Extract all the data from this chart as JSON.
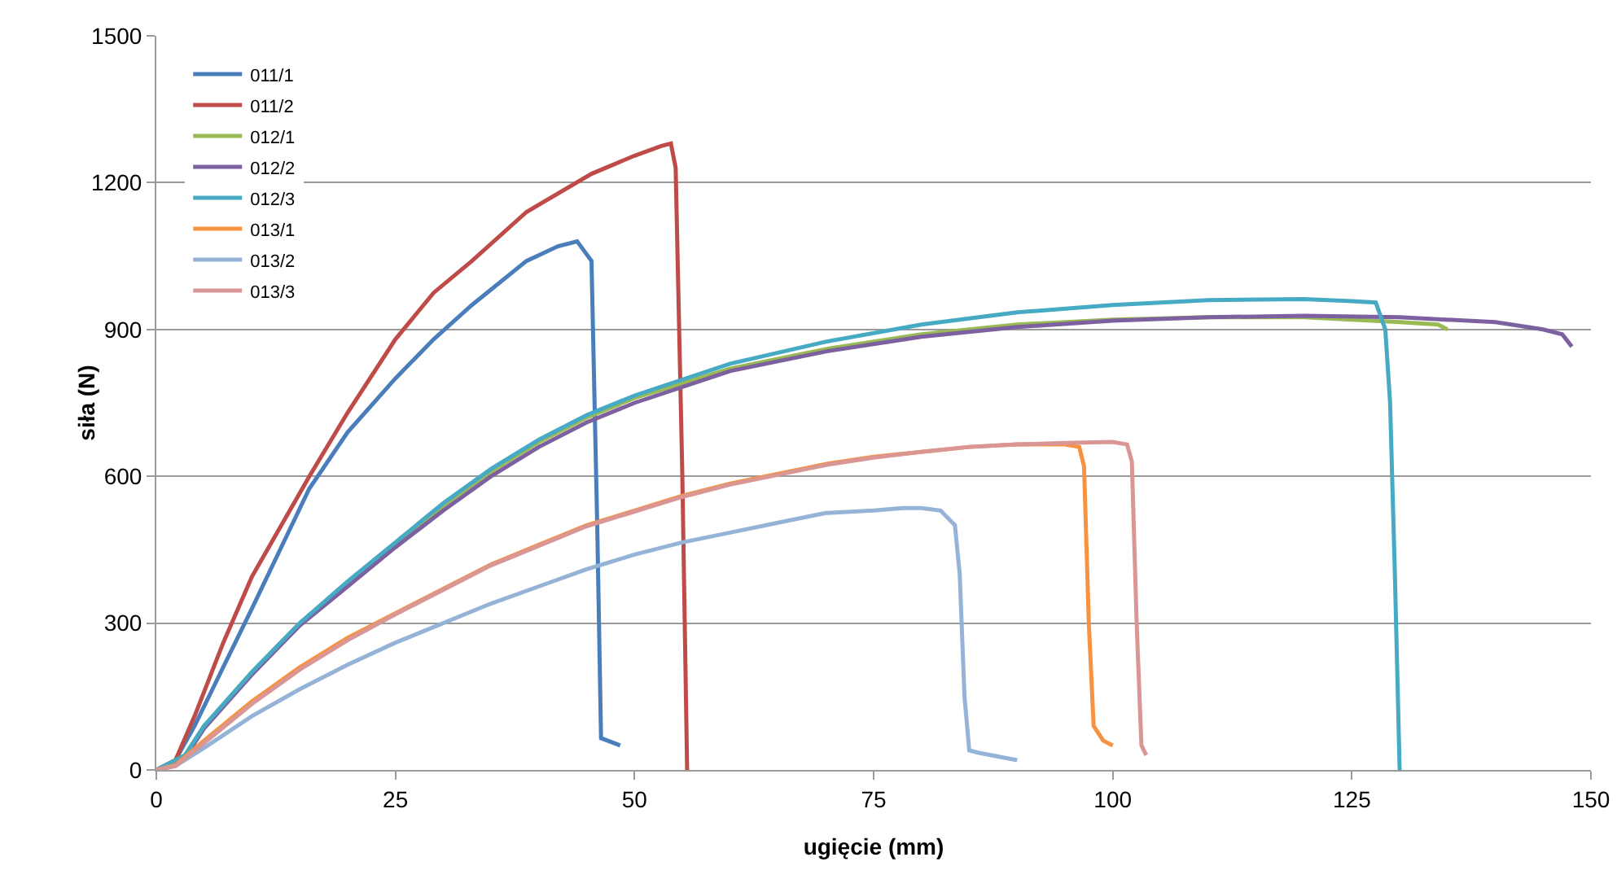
{
  "chart_data": {
    "type": "line",
    "xlabel": "ugięcie (mm)",
    "ylabel": "siła (N)",
    "xlim": [
      0,
      150
    ],
    "xticks": [
      0,
      25,
      50,
      75,
      100,
      125,
      150
    ],
    "ylim": [
      0,
      1500
    ],
    "yticks": [
      0,
      300,
      600,
      900,
      1200,
      1500
    ],
    "grid": "y",
    "legend": "top left",
    "marker": "none",
    "line_style": "solid",
    "series": [
      {
        "name": "011/1",
        "color": "#4a7ebb",
        "x": [
          0,
          2,
          4,
          7,
          10,
          16,
          20,
          25,
          29,
          33,
          38.7,
          42,
          44,
          45.5,
          46.1,
          46.5,
          48.5
        ],
        "values": [
          0,
          20,
          90,
          210,
          330,
          575,
          690,
          800,
          880,
          950,
          1040,
          1070,
          1080,
          1040,
          500,
          65,
          50
        ]
      },
      {
        "name": "011/2",
        "color": "#be4b48",
        "x": [
          0,
          2,
          4,
          7,
          10,
          16,
          20,
          25,
          29,
          33,
          38.7,
          45.5,
          50,
          52.8,
          53.8,
          54.3,
          55,
          55.5
        ],
        "values": [
          0,
          20,
          110,
          260,
          395,
          600,
          730,
          880,
          975,
          1040,
          1140,
          1218,
          1255,
          1275,
          1280,
          1230,
          600,
          0
        ]
      },
      {
        "name": "012/1",
        "color": "#98b954",
        "x": [
          0,
          3,
          5,
          10,
          15,
          20,
          25,
          30,
          35,
          40,
          45,
          50,
          60,
          70,
          80,
          90,
          100,
          110,
          120,
          130,
          134,
          135
        ],
        "values": [
          0,
          30,
          90,
          200,
          300,
          380,
          460,
          540,
          610,
          670,
          720,
          760,
          820,
          860,
          890,
          910,
          920,
          925,
          925,
          915,
          910,
          900
        ]
      },
      {
        "name": "012/2",
        "color": "#7d60a0",
        "x": [
          0,
          3,
          5,
          10,
          15,
          20,
          25,
          30,
          35,
          40,
          45,
          50,
          60,
          70,
          80,
          90,
          100,
          110,
          120,
          130,
          140,
          145,
          147,
          148
        ],
        "values": [
          0,
          25,
          85,
          195,
          295,
          375,
          455,
          530,
          600,
          660,
          710,
          750,
          815,
          855,
          885,
          905,
          918,
          925,
          928,
          925,
          915,
          900,
          890,
          865
        ]
      },
      {
        "name": "012/3",
        "color": "#46aac5",
        "x": [
          0,
          3,
          5,
          10,
          15,
          20,
          25,
          30,
          35,
          40,
          45,
          50,
          60,
          70,
          80,
          90,
          100,
          110,
          120,
          125,
          127.5,
          128.5,
          129,
          129.5,
          130
        ],
        "values": [
          0,
          30,
          90,
          200,
          300,
          385,
          465,
          545,
          615,
          675,
          725,
          765,
          830,
          875,
          910,
          935,
          950,
          960,
          962,
          958,
          955,
          900,
          750,
          400,
          0
        ]
      },
      {
        "name": "013/1",
        "color": "#f69240",
        "x": [
          0,
          2,
          5,
          10,
          15,
          20,
          25,
          30,
          35,
          40,
          45,
          50,
          55,
          60,
          65,
          70,
          75,
          80,
          85,
          90,
          95,
          96.5,
          97,
          97.5,
          98,
          99,
          100
        ],
        "values": [
          0,
          10,
          60,
          140,
          210,
          270,
          320,
          370,
          420,
          460,
          500,
          530,
          560,
          585,
          605,
          625,
          640,
          650,
          660,
          665,
          665,
          660,
          620,
          300,
          90,
          60,
          50
        ]
      },
      {
        "name": "013/2",
        "color": "#95b3d7",
        "x": [
          0,
          2,
          5,
          10,
          15,
          20,
          25,
          30,
          35,
          40,
          45,
          50,
          55,
          60,
          65,
          70,
          75,
          78,
          80,
          82,
          83.5,
          84,
          84.5,
          85,
          86,
          90
        ],
        "values": [
          0,
          8,
          45,
          110,
          165,
          215,
          260,
          300,
          340,
          375,
          410,
          440,
          465,
          485,
          505,
          525,
          530,
          535,
          535,
          530,
          500,
          400,
          150,
          40,
          35,
          20
        ]
      },
      {
        "name": "013/3",
        "color": "#d99694",
        "x": [
          0,
          2,
          5,
          10,
          15,
          20,
          25,
          30,
          35,
          40,
          45,
          50,
          55,
          60,
          65,
          70,
          75,
          80,
          85,
          90,
          95,
          100,
          101.5,
          102,
          102.5,
          103,
          103.5
        ],
        "values": [
          0,
          8,
          55,
          135,
          205,
          265,
          318,
          368,
          418,
          458,
          498,
          528,
          558,
          583,
          603,
          623,
          638,
          650,
          660,
          665,
          668,
          670,
          665,
          630,
          300,
          50,
          30
        ]
      }
    ]
  }
}
